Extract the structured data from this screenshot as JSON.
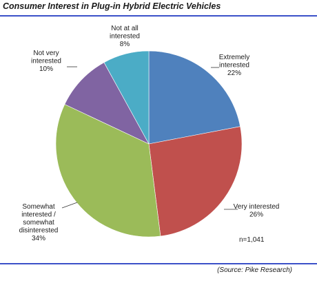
{
  "title": "Consumer Interest in Plug-in Hybrid Electric Vehicles",
  "source": "(Source: Pike Research)",
  "chart_data": {
    "type": "pie",
    "title": "Consumer Interest in Plug-in Hybrid Electric Vehicles",
    "note": "n=1,041",
    "slices": [
      {
        "label_lines": [
          "Extremely",
          "interested",
          "22%"
        ],
        "value": 22,
        "color": "#4f81bd"
      },
      {
        "label_lines": [
          "Very interested",
          "26%"
        ],
        "value": 26,
        "color": "#c0504d"
      },
      {
        "label_lines": [
          "Somewhat",
          "interested /",
          "somewhat",
          "disinterested",
          "34%"
        ],
        "value": 34,
        "color": "#9bbb59"
      },
      {
        "label_lines": [
          "Not very",
          "interested",
          "10%"
        ],
        "value": 10,
        "color": "#8064a2"
      },
      {
        "label_lines": [
          "Not at all",
          "interested",
          "8%"
        ],
        "value": 8,
        "color": "#4bacc6"
      }
    ]
  }
}
